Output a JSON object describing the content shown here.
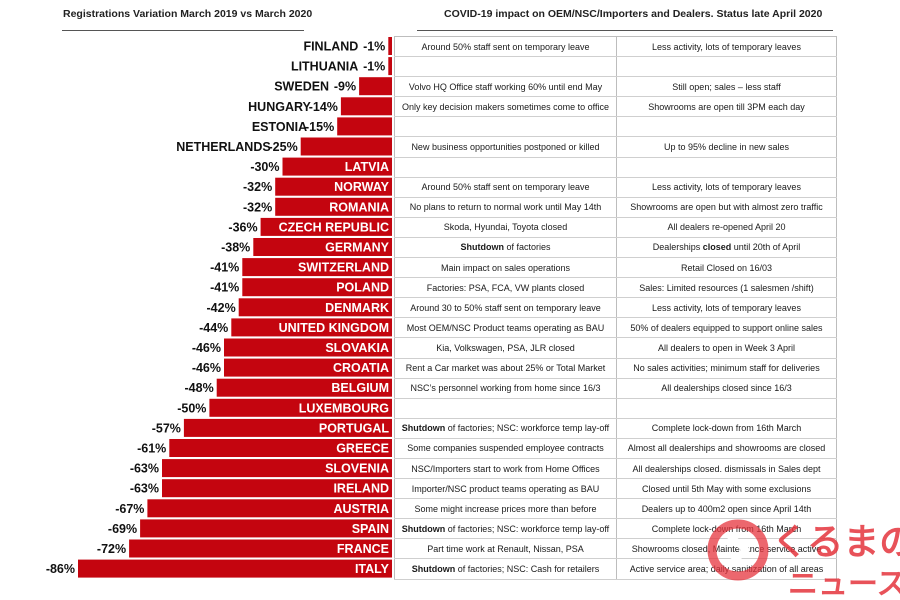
{
  "title_left": "Registrations Variation March 2019 vs March 2020",
  "title_right": "COVID-19 impact on OEM/NSC/Importers and Dealers. Status late April 2020",
  "colors": {
    "bar": "#c4050f",
    "logo": "#e5343d"
  },
  "chart_data": {
    "type": "bar",
    "orientation": "horizontal",
    "title": "Registrations Variation March 2019 vs March 2020",
    "categories": [
      "FINLAND",
      "LITHUANIA",
      "SWEDEN",
      "HUNGARY",
      "ESTONIA",
      "NETHERLANDS",
      "LATVIA",
      "NORWAY",
      "ROMANIA",
      "CZECH REPUBLIC",
      "GERMANY",
      "SWITZERLAND",
      "POLAND",
      "DENMARK",
      "UNITED KINGDOM",
      "SLOVAKIA",
      "CROATIA",
      "BELGIUM",
      "LUXEMBOURG",
      "PORTUGAL",
      "GREECE",
      "SLOVENIA",
      "IRELAND",
      "AUSTRIA",
      "SPAIN",
      "FRANCE",
      "ITALY"
    ],
    "values": [
      -1,
      -1,
      -9,
      -14,
      -15,
      -25,
      -30,
      -32,
      -32,
      -36,
      -38,
      -41,
      -41,
      -42,
      -44,
      -46,
      -46,
      -48,
      -50,
      -57,
      -61,
      -63,
      -63,
      -67,
      -69,
      -72,
      -86
    ],
    "value_labels": [
      "-1%",
      "-1%",
      "-9%",
      "-14%",
      "-15%",
      "-25%",
      "-30%",
      "-32%",
      "-32%",
      "-36%",
      "-38%",
      "-41%",
      "-41%",
      "-42%",
      "-44%",
      "-46%",
      "-46%",
      "-48%",
      "-50%",
      "-57%",
      "-61%",
      "-63%",
      "-63%",
      "-67%",
      "-69%",
      "-72%",
      "-86%"
    ],
    "xlim": [
      -86,
      0
    ],
    "grid": false,
    "legend": "none"
  },
  "table": {
    "rows": [
      {
        "oem": {
          "bold": "",
          "text": "Around 50% staff sent on temporary leave"
        },
        "dealers": {
          "pre": "Less activity, lots of temporary leaves",
          "bold": "",
          "post": ""
        }
      },
      {
        "oem": {
          "bold": "",
          "text": ""
        },
        "dealers": {
          "pre": "",
          "bold": "",
          "post": ""
        }
      },
      {
        "oem": {
          "bold": "",
          "text": "Volvo HQ Office staff working 60% until end May"
        },
        "dealers": {
          "pre": "Still open; sales – less staff",
          "bold": "",
          "post": ""
        }
      },
      {
        "oem": {
          "bold": "",
          "text": "Only key decision makers sometimes come to office"
        },
        "dealers": {
          "pre": "Showrooms are open till 3PM each day",
          "bold": "",
          "post": ""
        }
      },
      {
        "oem": {
          "bold": "",
          "text": ""
        },
        "dealers": {
          "pre": "",
          "bold": "",
          "post": ""
        }
      },
      {
        "oem": {
          "bold": "",
          "text": "New business opportunities postponed or killed"
        },
        "dealers": {
          "pre": "Up to 95% decline in new sales",
          "bold": "",
          "post": ""
        }
      },
      {
        "oem": {
          "bold": "",
          "text": ""
        },
        "dealers": {
          "pre": "",
          "bold": "",
          "post": ""
        }
      },
      {
        "oem": {
          "bold": "",
          "text": "Around 50% staff sent on temporary leave"
        },
        "dealers": {
          "pre": "Less activity, lots of temporary leaves",
          "bold": "",
          "post": ""
        }
      },
      {
        "oem": {
          "bold": "",
          "text": "No plans to return to normal work until May 14th"
        },
        "dealers": {
          "pre": "Showrooms are open but with almost zero traffic",
          "bold": "",
          "post": ""
        }
      },
      {
        "oem": {
          "bold": "",
          "text": "Skoda, Hyundai, Toyota closed"
        },
        "dealers": {
          "pre": "All dealers re-opened April 20",
          "bold": "",
          "post": ""
        }
      },
      {
        "oem": {
          "bold": "Shutdown",
          "text": " of factories"
        },
        "dealers": {
          "pre": "Dealerships ",
          "bold": "closed",
          "post": " until 20th of April"
        }
      },
      {
        "oem": {
          "bold": "",
          "text": "Main impact on sales operations"
        },
        "dealers": {
          "pre": "Retail Closed on 16/03",
          "bold": "",
          "post": ""
        }
      },
      {
        "oem": {
          "bold": "",
          "text": "Factories: PSA, FCA, VW plants closed"
        },
        "dealers": {
          "pre": "Sales: Limited resources (1 salesmen /shift)",
          "bold": "",
          "post": ""
        }
      },
      {
        "oem": {
          "bold": "",
          "text": "Around 30 to 50% staff sent on temporary leave"
        },
        "dealers": {
          "pre": "Less activity, lots of temporary leaves",
          "bold": "",
          "post": ""
        }
      },
      {
        "oem": {
          "bold": "",
          "text": "Most OEM/NSC Product teams operating as BAU"
        },
        "dealers": {
          "pre": "50% of dealers equipped to support online sales",
          "bold": "",
          "post": ""
        }
      },
      {
        "oem": {
          "bold": "",
          "text": "Kia, Volkswagen, PSA, JLR closed"
        },
        "dealers": {
          "pre": "All dealers to open in Week 3 April",
          "bold": "",
          "post": ""
        }
      },
      {
        "oem": {
          "bold": "",
          "text": "Rent a Car market was about 25% or Total Market"
        },
        "dealers": {
          "pre": "No sales activities; minimum staff for deliveries",
          "bold": "",
          "post": ""
        }
      },
      {
        "oem": {
          "bold": "",
          "text": "NSC’s personnel working from home since 16/3"
        },
        "dealers": {
          "pre": "All dealerships closed since 16/3",
          "bold": "",
          "post": ""
        }
      },
      {
        "oem": {
          "bold": "",
          "text": ""
        },
        "dealers": {
          "pre": "",
          "bold": "",
          "post": ""
        }
      },
      {
        "oem": {
          "bold": "Shutdown",
          "text": " of factories; NSC: workforce temp lay-off"
        },
        "dealers": {
          "pre": "Complete lock-down from 16th March",
          "bold": "",
          "post": ""
        }
      },
      {
        "oem": {
          "bold": "",
          "text": "Some companies suspended employee contracts"
        },
        "dealers": {
          "pre": "Almost all dealerships and showrooms are closed",
          "bold": "",
          "post": ""
        }
      },
      {
        "oem": {
          "bold": "",
          "text": "NSC/Importers start to work from Home Offices"
        },
        "dealers": {
          "pre": "All dealerships closed. dismissals in Sales dept",
          "bold": "",
          "post": ""
        }
      },
      {
        "oem": {
          "bold": "",
          "text": "Importer/NSC product teams operating as BAU"
        },
        "dealers": {
          "pre": "Closed until 5th May with some exclusions",
          "bold": "",
          "post": ""
        }
      },
      {
        "oem": {
          "bold": "",
          "text": "Some might increase prices more than before"
        },
        "dealers": {
          "pre": "Dealers up to 400m2 open since April 14th",
          "bold": "",
          "post": ""
        }
      },
      {
        "oem": {
          "bold": "Shutdown",
          "text": " of factories; NSC: workforce temp lay-off"
        },
        "dealers": {
          "pre": "Complete lock-down from 16th March",
          "bold": "",
          "post": ""
        }
      },
      {
        "oem": {
          "bold": "",
          "text": "Part time work at Renault, Nissan, PSA"
        },
        "dealers": {
          "pre": "Showrooms closed, Maintenance service active",
          "bold": "",
          "post": ""
        }
      },
      {
        "oem": {
          "bold": "Shutdown",
          "text": " of factories; NSC: Cash for retailers"
        },
        "dealers": {
          "pre": "Active service area; daily sanitization of all areas",
          "bold": "",
          "post": ""
        }
      }
    ]
  },
  "watermark": {
    "line1": "くるまの",
    "line2": "ニュース"
  }
}
